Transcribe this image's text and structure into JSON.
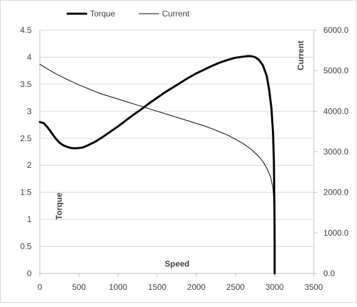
{
  "chart_data": {
    "type": "line",
    "title": "",
    "xlabel": "Speed",
    "ylabel_left": "Torque",
    "ylabel_right": "Current",
    "xlim": [
      0,
      3500
    ],
    "ylim_left": [
      0,
      4.5
    ],
    "ylim_right": [
      0,
      6000
    ],
    "x_ticks": [
      "0",
      "500",
      "1000",
      "1500",
      "2000",
      "2500",
      "3000",
      "3500"
    ],
    "y_left_ticks": [
      "0",
      "0.5",
      "1",
      "1.5",
      "2",
      "2.5",
      "3",
      "3.5",
      "4",
      "4.5"
    ],
    "y_right_ticks": [
      "0.0",
      "1000.0",
      "2000.0",
      "3000.0",
      "4000.0",
      "5000.0",
      "6000.0"
    ],
    "grid": "horizontal",
    "legend": "top",
    "series": [
      {
        "name": "Torque",
        "axis": "left",
        "style": "thick",
        "points": [
          [
            0,
            2.8
          ],
          [
            50,
            2.78
          ],
          [
            100,
            2.7
          ],
          [
            150,
            2.6
          ],
          [
            200,
            2.5
          ],
          [
            250,
            2.42
          ],
          [
            300,
            2.37
          ],
          [
            350,
            2.34
          ],
          [
            400,
            2.32
          ],
          [
            450,
            2.315
          ],
          [
            500,
            2.32
          ],
          [
            550,
            2.33
          ],
          [
            600,
            2.36
          ],
          [
            700,
            2.43
          ],
          [
            800,
            2.52
          ],
          [
            900,
            2.62
          ],
          [
            1000,
            2.72
          ],
          [
            1100,
            2.83
          ],
          [
            1200,
            2.94
          ],
          [
            1300,
            3.04
          ],
          [
            1400,
            3.15
          ],
          [
            1500,
            3.25
          ],
          [
            1600,
            3.35
          ],
          [
            1700,
            3.44
          ],
          [
            1800,
            3.53
          ],
          [
            1900,
            3.62
          ],
          [
            2000,
            3.7
          ],
          [
            2100,
            3.77
          ],
          [
            2200,
            3.84
          ],
          [
            2300,
            3.9
          ],
          [
            2400,
            3.95
          ],
          [
            2500,
            3.99
          ],
          [
            2600,
            4.01
          ],
          [
            2650,
            4.02
          ],
          [
            2700,
            4.02
          ],
          [
            2750,
            4.0
          ],
          [
            2800,
            3.95
          ],
          [
            2850,
            3.85
          ],
          [
            2900,
            3.65
          ],
          [
            2930,
            3.4
          ],
          [
            2960,
            3.05
          ],
          [
            2980,
            2.6
          ],
          [
            2990,
            2.1
          ],
          [
            2995,
            1.6
          ],
          [
            2998,
            1.1
          ],
          [
            3000,
            0.6
          ],
          [
            3000,
            0.0
          ]
        ]
      },
      {
        "name": "Current",
        "axis": "right",
        "style": "thin",
        "points": [
          [
            0,
            5160
          ],
          [
            100,
            5040
          ],
          [
            200,
            4930
          ],
          [
            300,
            4830
          ],
          [
            400,
            4740
          ],
          [
            500,
            4650
          ],
          [
            600,
            4570
          ],
          [
            700,
            4490
          ],
          [
            800,
            4420
          ],
          [
            900,
            4360
          ],
          [
            1000,
            4300
          ],
          [
            1100,
            4240
          ],
          [
            1200,
            4180
          ],
          [
            1300,
            4120
          ],
          [
            1400,
            4060
          ],
          [
            1500,
            4000
          ],
          [
            1600,
            3940
          ],
          [
            1700,
            3880
          ],
          [
            1800,
            3820
          ],
          [
            1900,
            3760
          ],
          [
            2000,
            3700
          ],
          [
            2100,
            3640
          ],
          [
            2200,
            3570
          ],
          [
            2300,
            3490
          ],
          [
            2400,
            3410
          ],
          [
            2500,
            3310
          ],
          [
            2600,
            3200
          ],
          [
            2700,
            3060
          ],
          [
            2800,
            2880
          ],
          [
            2850,
            2760
          ],
          [
            2900,
            2600
          ],
          [
            2950,
            2370
          ],
          [
            2980,
            2100
          ],
          [
            2995,
            1600
          ],
          [
            3000,
            600
          ],
          [
            3000,
            0
          ]
        ]
      }
    ]
  }
}
